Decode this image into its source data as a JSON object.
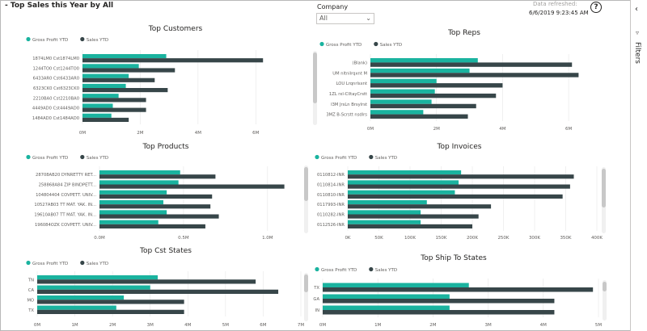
{
  "header": {
    "title": "- Top Sales this Year by All",
    "company_label": "Company",
    "company_value": "All",
    "refresh_label": "Data refreshed:",
    "refresh_time": "6/6/2019 9:23:45 AM",
    "help_glyph": "?"
  },
  "filters_pane": {
    "label": "Filters",
    "chevron_icon": "chevron-left-icon",
    "funnel_icon": "funnel-icon"
  },
  "colors": {
    "gross_profit": "#1ab39f",
    "sales": "#374649",
    "gridline": "#e6e6e6",
    "scrollbar": "#c8c8c8"
  },
  "chart_data": [
    {
      "type": "bar",
      "orientation": "horizontal",
      "title": "Top Customers",
      "categories": [
        "1874LM0 Cst1874LM0",
        "1244TO0 Cst1244TO0",
        "6433AR0 Cst6433AR0",
        "6323CK0 Cst6323CK0",
        "2210BA0 Cst2210BA0",
        "4449AD0 Cst4449AD0",
        "1484AD0 Cst1484AD0"
      ],
      "series": [
        {
          "name": "Gross Profit YTD",
          "values": [
            2.9,
            1.95,
            1.6,
            1.5,
            1.25,
            1.05,
            1.0
          ]
        },
        {
          "name": "Sales YTD",
          "values": [
            6.25,
            3.2,
            2.5,
            2.95,
            2.2,
            2.2,
            1.6
          ]
        }
      ],
      "xticks": [
        "0M",
        "2M",
        "4M",
        "6M"
      ],
      "xlim": [
        0,
        7
      ],
      "legend": "top-left",
      "scrollbar": false
    },
    {
      "type": "bar",
      "orientation": "horizontal",
      "title": "Top Reps",
      "categories": [
        "(Blank)",
        "UM nltnilrqxnt M",
        "LOU Lrqnrlsxnt",
        "1ZL rxl-ClltayCrstt",
        "I3M JrsLn Brsylrst",
        "3MZ B-Scrstt nsdlrs"
      ],
      "series": [
        {
          "name": "Gross Profit YTD",
          "values": [
            3.25,
            3.0,
            2.0,
            1.95,
            1.85,
            1.6
          ]
        },
        {
          "name": "Sales YTD",
          "values": [
            6.1,
            6.3,
            4.0,
            3.8,
            3.2,
            2.95
          ]
        }
      ],
      "xticks": [
        "0M",
        "2M",
        "4M",
        "6M"
      ],
      "xlim": [
        0,
        7
      ],
      "legend": "top-left",
      "scrollbar": true
    },
    {
      "type": "bar",
      "orientation": "horizontal",
      "title": "Top Products",
      "categories": [
        "28708AB20 DYNRETTY RET...",
        "258868A84 ZIP BINDPETT...",
        "104804404 COVPETT. UNIV...",
        "10527AB03 TT MAT. YAK. IN...",
        "19610AB07 TT MAT. YAK. IN...",
        "196084OZK COVPETT. UNIV..."
      ],
      "series": [
        {
          "name": "Gross Profit YTD",
          "values": [
            0.48,
            0.47,
            0.4,
            0.38,
            0.4,
            0.35
          ]
        },
        {
          "name": "Sales YTD",
          "values": [
            0.69,
            1.1,
            0.67,
            0.66,
            0.71,
            0.63
          ]
        }
      ],
      "xticks": [
        "0.0M",
        "0.5M",
        "1.0M"
      ],
      "xlim": [
        0,
        1.15
      ],
      "legend": "top-left",
      "scrollbar": true
    },
    {
      "type": "bar",
      "orientation": "horizontal",
      "title": "Top Invoices",
      "categories": [
        "0110812-INR",
        "0110814-INR",
        "0110810-INR",
        "0117993-INR",
        "0110282-INR",
        "0112526-INR"
      ],
      "series": [
        {
          "name": "Gross Profit YTD",
          "values": [
            182,
            178,
            172,
            127,
            117,
            117
          ]
        },
        {
          "name": "Sales YTD",
          "values": [
            363,
            357,
            345,
            230,
            210,
            200
          ]
        }
      ],
      "xticks": [
        "0K",
        "50K",
        "100K",
        "150K",
        "200K",
        "250K",
        "300K",
        "350K",
        "400K"
      ],
      "xlim": [
        0,
        400
      ],
      "legend": "top-left",
      "scrollbar": true
    },
    {
      "type": "bar",
      "orientation": "horizontal",
      "title": "Top Cst States",
      "categories": [
        "TN",
        "CA",
        "MO",
        "TX"
      ],
      "series": [
        {
          "name": "Gross Profit YTD",
          "values": [
            3.2,
            3.0,
            2.3,
            2.1
          ]
        },
        {
          "name": "Sales YTD",
          "values": [
            5.8,
            6.4,
            3.9,
            3.9
          ]
        }
      ],
      "xticks": [
        "0M",
        "1M",
        "2M",
        "3M",
        "4M",
        "5M",
        "6M",
        "7M"
      ],
      "xlim": [
        0,
        7
      ],
      "legend": "top-left",
      "scrollbar": true
    },
    {
      "type": "bar",
      "orientation": "horizontal",
      "title": "Top Ship To States",
      "categories": [
        "TX",
        "GA",
        "IN"
      ],
      "series": [
        {
          "name": "Gross Profit YTD",
          "values": [
            2.65,
            2.3,
            2.3
          ]
        },
        {
          "name": "Sales YTD",
          "values": [
            4.9,
            4.2,
            4.2
          ]
        }
      ],
      "xticks": [
        "0M",
        "1M",
        "2M",
        "3M",
        "4M",
        "5M"
      ],
      "xlim": [
        0,
        5
      ],
      "legend": "top-left",
      "scrollbar": true
    }
  ]
}
